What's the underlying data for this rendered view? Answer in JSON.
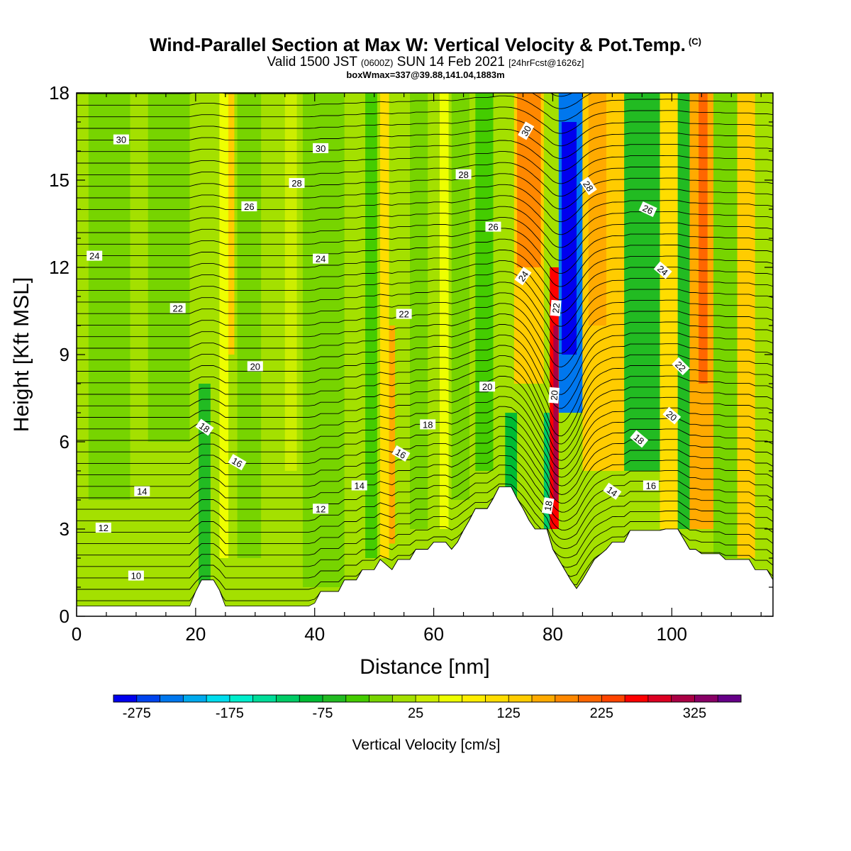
{
  "title": {
    "main": "Wind-Parallel Section at Max W: Vertical Velocity & Pot.Temp.",
    "copyright": "(C)",
    "valid_prefix": "Valid 1500 JST",
    "valid_utc": "(0600Z)",
    "valid_date": "SUN 14 Feb 2021",
    "forecast": "[24hrFcst@1626z]",
    "boxinfo": "boxWmax=337@39.88,141.04,1883m"
  },
  "chart_data": {
    "type": "heatmap",
    "xlabel": "Distance [nm]",
    "ylabel": "Height [Kft MSL]",
    "xlim": [
      0,
      117
    ],
    "ylim": [
      0,
      18
    ],
    "x_ticks": [
      "0",
      "20",
      "40",
      "60",
      "80",
      "100"
    ],
    "y_ticks": [
      "0",
      "3",
      "6",
      "9",
      "12",
      "15",
      "18"
    ],
    "colorbar": {
      "title": "Vertical Velocity [cm/s]",
      "tick_labels": [
        "-275",
        "-175",
        "-75",
        "25",
        "125",
        "225",
        "325"
      ],
      "range": [
        -300,
        375
      ],
      "step": 25,
      "colors": [
        "#0000ee",
        "#0044ee",
        "#0077ee",
        "#00aaee",
        "#00ddee",
        "#00eecc",
        "#00dd99",
        "#00cc66",
        "#00bb33",
        "#22bb22",
        "#44cc00",
        "#77d400",
        "#a4e000",
        "#ccee00",
        "#eeff00",
        "#ffee00",
        "#ffdd00",
        "#ffcc00",
        "#ffaa00",
        "#ff8800",
        "#ff6600",
        "#ff4400",
        "#ff0000",
        "#dd0022",
        "#aa0044",
        "#880066",
        "#660088"
      ]
    },
    "terrain_kft": [
      [
        0,
        0.35
      ],
      [
        19,
        0.35
      ],
      [
        20,
        0.85
      ],
      [
        21,
        1.25
      ],
      [
        23,
        1.25
      ],
      [
        24,
        0.9
      ],
      [
        25,
        0.35
      ],
      [
        39,
        0.35
      ],
      [
        40,
        0.45
      ],
      [
        41,
        0.85
      ],
      [
        44,
        0.85
      ],
      [
        45,
        1.25
      ],
      [
        47,
        1.25
      ],
      [
        48,
        1.6
      ],
      [
        50,
        1.6
      ],
      [
        51,
        1.95
      ],
      [
        53,
        1.6
      ],
      [
        54,
        1.95
      ],
      [
        56,
        1.95
      ],
      [
        57,
        2.3
      ],
      [
        59,
        2.3
      ],
      [
        60,
        2.55
      ],
      [
        62,
        2.55
      ],
      [
        63,
        2.3
      ],
      [
        64,
        2.55
      ],
      [
        65,
        2.95
      ],
      [
        66,
        3.3
      ],
      [
        67,
        3.7
      ],
      [
        69,
        3.7
      ],
      [
        70,
        4.05
      ],
      [
        71,
        4.45
      ],
      [
        73,
        4.45
      ],
      [
        74,
        4.05
      ],
      [
        75,
        3.7
      ],
      [
        76,
        3.3
      ],
      [
        77,
        3.0
      ],
      [
        79,
        3.0
      ],
      [
        80,
        2.3
      ],
      [
        81,
        1.95
      ],
      [
        82,
        1.6
      ],
      [
        83,
        1.25
      ],
      [
        84,
        0.95
      ],
      [
        85,
        1.25
      ],
      [
        86,
        1.6
      ],
      [
        87,
        1.95
      ],
      [
        89,
        2.3
      ],
      [
        90,
        2.55
      ],
      [
        92,
        2.55
      ],
      [
        93,
        2.95
      ],
      [
        98,
        2.95
      ],
      [
        99,
        3.0
      ],
      [
        101,
        3.0
      ],
      [
        102,
        2.65
      ],
      [
        103,
        2.3
      ],
      [
        104,
        2.3
      ],
      [
        105,
        2.15
      ],
      [
        108,
        2.15
      ],
      [
        109,
        1.95
      ],
      [
        113,
        1.95
      ],
      [
        114,
        1.6
      ],
      [
        116,
        1.6
      ],
      [
        117,
        1.25
      ]
    ],
    "theta_labels": [
      {
        "x": 7.5,
        "y": 16.4,
        "text": "30"
      },
      {
        "x": 41,
        "y": 16.1,
        "text": "30"
      },
      {
        "x": 75.5,
        "y": 16.7,
        "text": "30",
        "rot": -60
      },
      {
        "x": 37,
        "y": 14.9,
        "text": "28"
      },
      {
        "x": 65,
        "y": 15.2,
        "text": "28"
      },
      {
        "x": 86,
        "y": 14.8,
        "text": "28",
        "rot": 55
      },
      {
        "x": 29,
        "y": 14.1,
        "text": "26"
      },
      {
        "x": 70,
        "y": 13.4,
        "text": "26"
      },
      {
        "x": 96,
        "y": 14.0,
        "text": "26",
        "rot": 25
      },
      {
        "x": 3,
        "y": 12.4,
        "text": "24"
      },
      {
        "x": 41,
        "y": 12.3,
        "text": "24"
      },
      {
        "x": 75,
        "y": 11.7,
        "text": "24",
        "rot": -55
      },
      {
        "x": 98.5,
        "y": 11.9,
        "text": "24",
        "rot": 40
      },
      {
        "x": 17,
        "y": 10.6,
        "text": "22"
      },
      {
        "x": 55,
        "y": 10.4,
        "text": "22"
      },
      {
        "x": 80.5,
        "y": 10.6,
        "text": "22",
        "rot": -85
      },
      {
        "x": 101.5,
        "y": 8.6,
        "text": "22",
        "rot": 45
      },
      {
        "x": 30,
        "y": 8.6,
        "text": "20"
      },
      {
        "x": 69,
        "y": 7.9,
        "text": "20"
      },
      {
        "x": 80.2,
        "y": 7.6,
        "text": "20",
        "rot": -85
      },
      {
        "x": 100,
        "y": 6.9,
        "text": "20",
        "rot": 40
      },
      {
        "x": 21.5,
        "y": 6.5,
        "text": "18",
        "rot": 35
      },
      {
        "x": 59,
        "y": 6.6,
        "text": "18"
      },
      {
        "x": 79.2,
        "y": 3.8,
        "text": "18",
        "rot": -80
      },
      {
        "x": 94.5,
        "y": 6.1,
        "text": "18",
        "rot": 40
      },
      {
        "x": 27,
        "y": 5.3,
        "text": "16",
        "rot": 30
      },
      {
        "x": 54.5,
        "y": 5.6,
        "text": "16",
        "rot": 30
      },
      {
        "x": 96.5,
        "y": 4.5,
        "text": "16"
      },
      {
        "x": 11,
        "y": 4.3,
        "text": "14"
      },
      {
        "x": 47.5,
        "y": 4.5,
        "text": "14"
      },
      {
        "x": 90,
        "y": 4.3,
        "text": "14",
        "rot": 35
      },
      {
        "x": 4.5,
        "y": 3.05,
        "text": "12"
      },
      {
        "x": 41,
        "y": 3.7,
        "text": "12"
      },
      {
        "x": 10,
        "y": 1.4,
        "text": "10"
      }
    ]
  }
}
